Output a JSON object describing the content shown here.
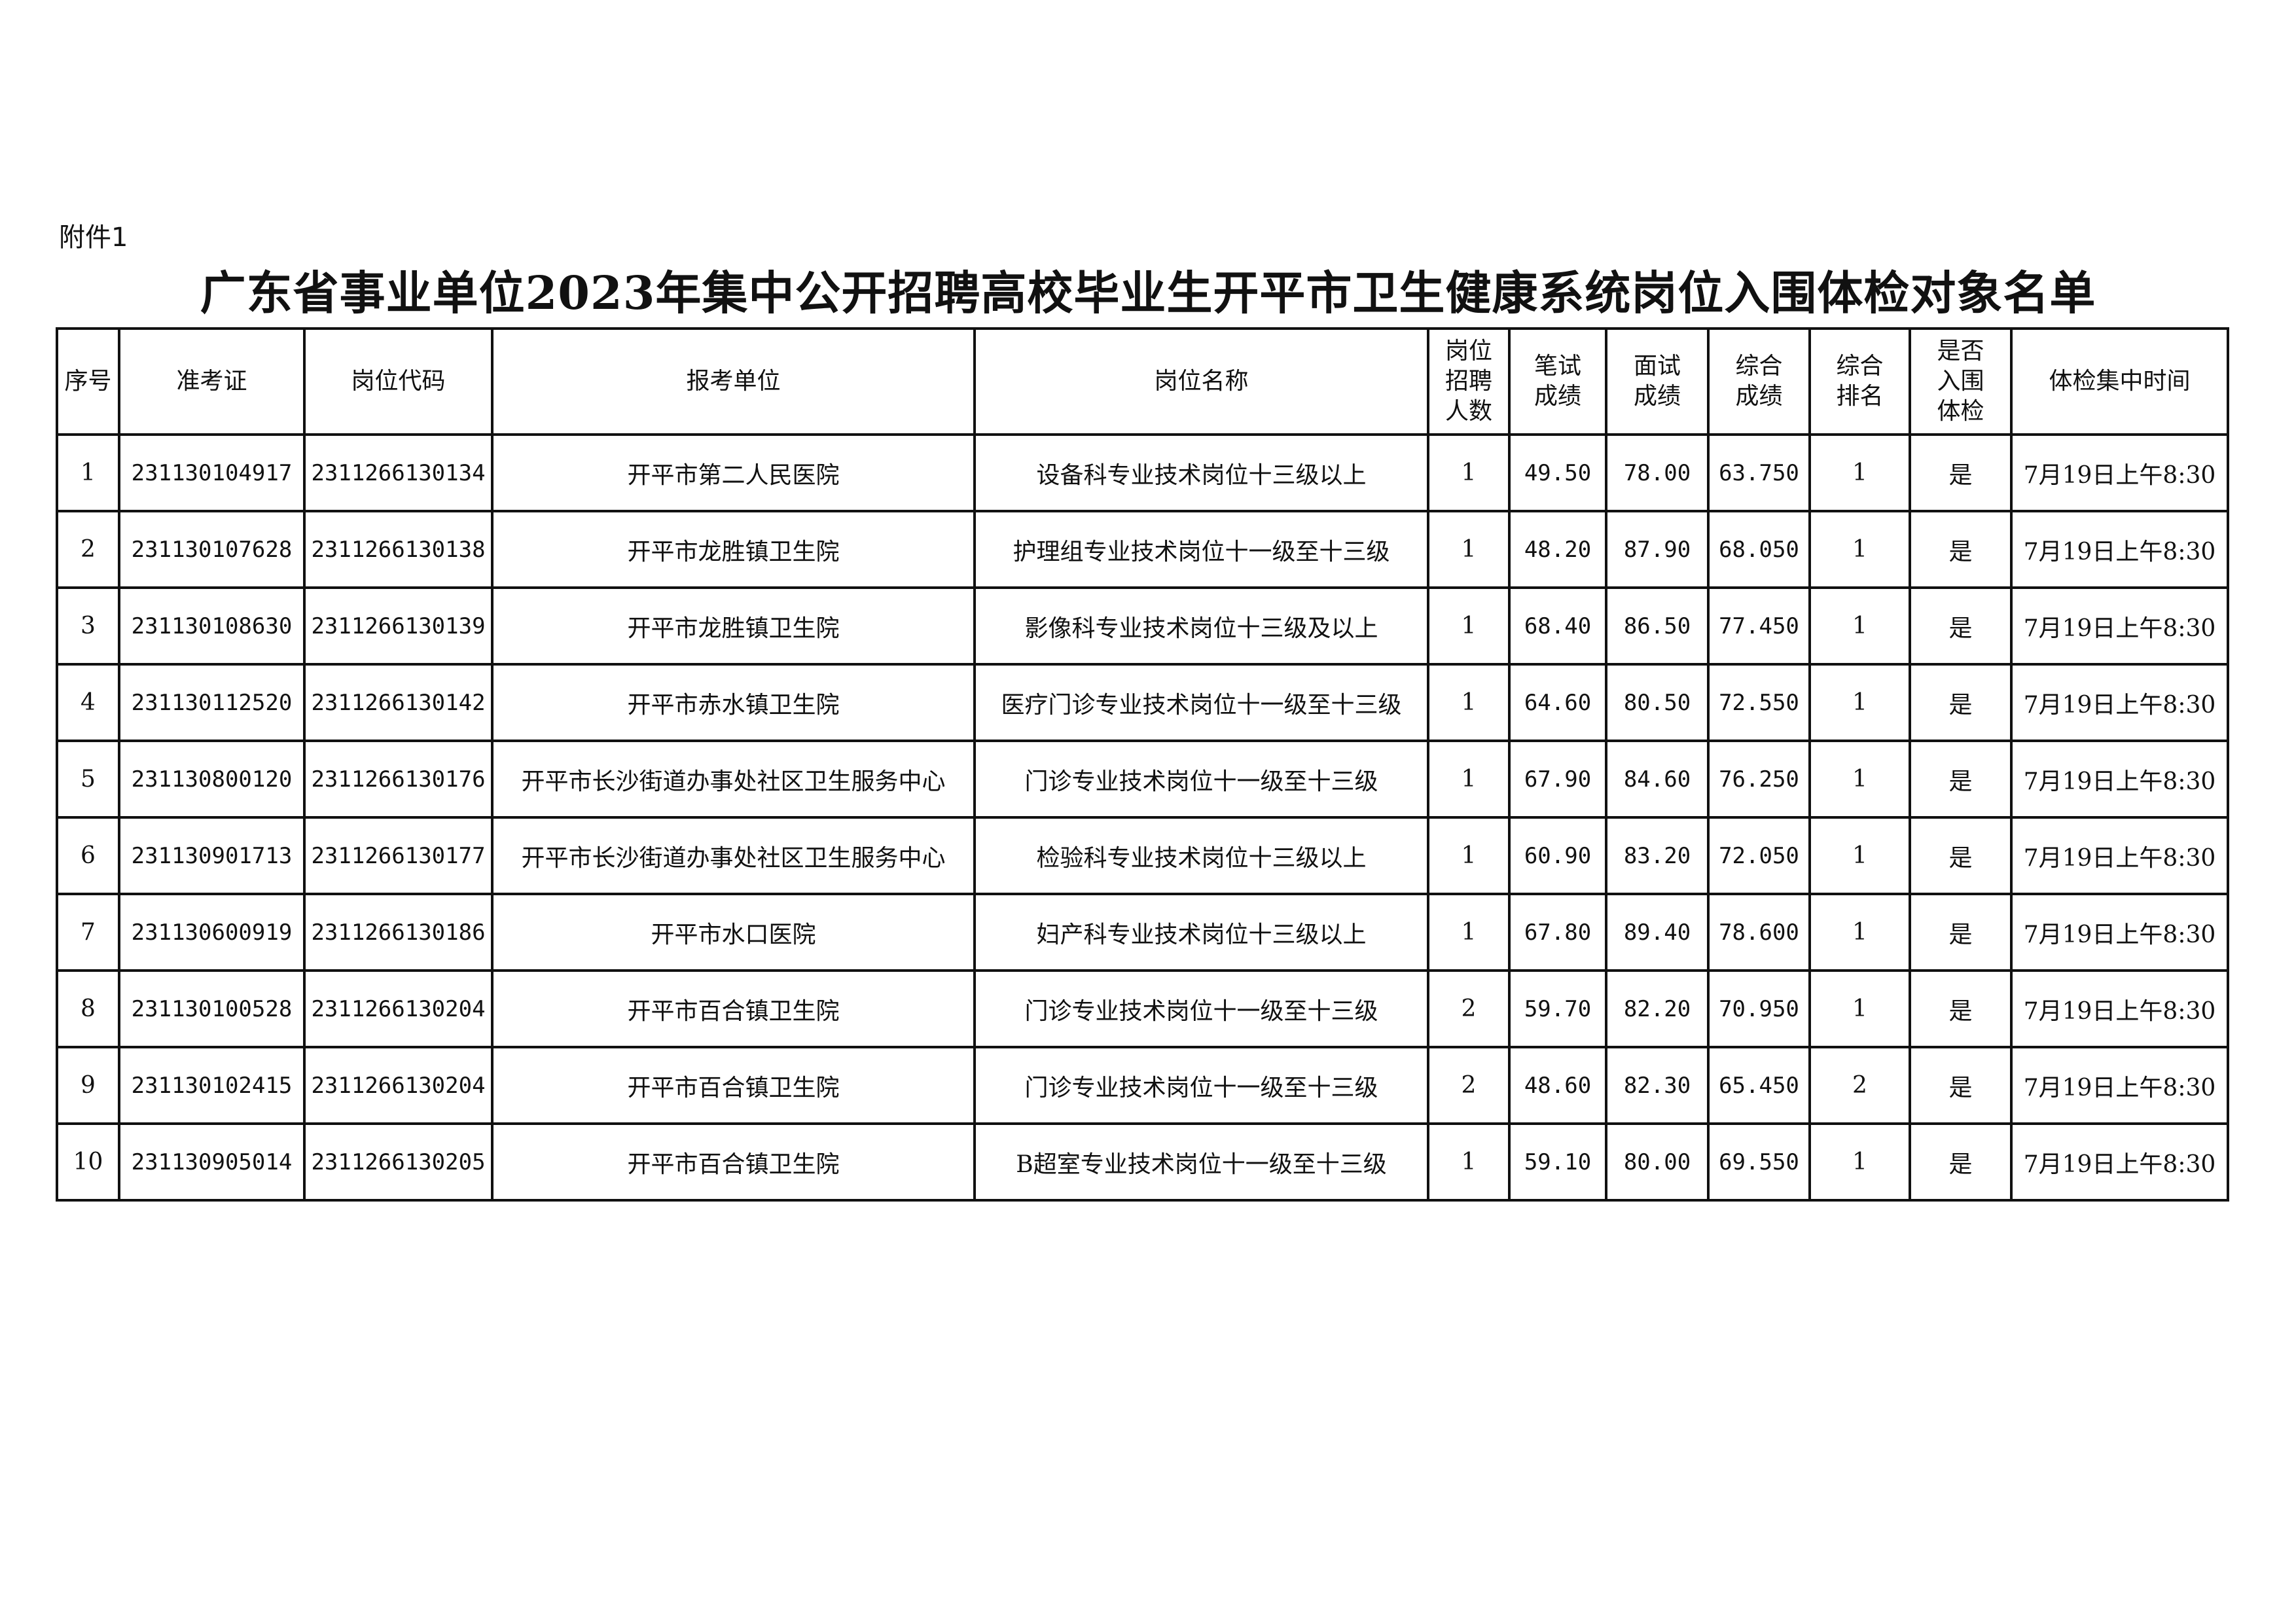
{
  "attachment_label": "附件1",
  "title": "广东省事业单位2023年集中公开招聘高校毕业生开平市卫生健康系统岗位入围体检对象名单",
  "columns": [
    "序号",
    "准考证",
    "岗位代码",
    "报考单位",
    "岗位名称",
    "岗位招聘人数",
    "笔试成绩",
    "面试成绩",
    "综合成绩",
    "综合排名",
    "是否入围体检",
    "体检集中时间"
  ],
  "rows": [
    {
      "no": "1",
      "ticket": "231130104917",
      "code": "2311266130134",
      "unit": "开平市第二人民医院",
      "post": "设备科专业技术岗位十三级以上",
      "quota": "1",
      "written": "49.50",
      "interview": "78.00",
      "total": "63.750",
      "rank": "1",
      "selected": "是",
      "time": "7月19日上午8:30"
    },
    {
      "no": "2",
      "ticket": "231130107628",
      "code": "2311266130138",
      "unit": "开平市龙胜镇卫生院",
      "post": "护理组专业技术岗位十一级至十三级",
      "quota": "1",
      "written": "48.20",
      "interview": "87.90",
      "total": "68.050",
      "rank": "1",
      "selected": "是",
      "time": "7月19日上午8:30"
    },
    {
      "no": "3",
      "ticket": "231130108630",
      "code": "2311266130139",
      "unit": "开平市龙胜镇卫生院",
      "post": "影像科专业技术岗位十三级及以上",
      "quota": "1",
      "written": "68.40",
      "interview": "86.50",
      "total": "77.450",
      "rank": "1",
      "selected": "是",
      "time": "7月19日上午8:30"
    },
    {
      "no": "4",
      "ticket": "231130112520",
      "code": "2311266130142",
      "unit": "开平市赤水镇卫生院",
      "post": "医疗门诊专业技术岗位十一级至十三级",
      "quota": "1",
      "written": "64.60",
      "interview": "80.50",
      "total": "72.550",
      "rank": "1",
      "selected": "是",
      "time": "7月19日上午8:30"
    },
    {
      "no": "5",
      "ticket": "231130800120",
      "code": "2311266130176",
      "unit": "开平市长沙街道办事处社区卫生服务中心",
      "post": "门诊专业技术岗位十一级至十三级",
      "quota": "1",
      "written": "67.90",
      "interview": "84.60",
      "total": "76.250",
      "rank": "1",
      "selected": "是",
      "time": "7月19日上午8:30"
    },
    {
      "no": "6",
      "ticket": "231130901713",
      "code": "2311266130177",
      "unit": "开平市长沙街道办事处社区卫生服务中心",
      "post": "检验科专业技术岗位十三级以上",
      "quota": "1",
      "written": "60.90",
      "interview": "83.20",
      "total": "72.050",
      "rank": "1",
      "selected": "是",
      "time": "7月19日上午8:30"
    },
    {
      "no": "7",
      "ticket": "231130600919",
      "code": "2311266130186",
      "unit": "开平市水口医院",
      "post": "妇产科专业技术岗位十三级以上",
      "quota": "1",
      "written": "67.80",
      "interview": "89.40",
      "total": "78.600",
      "rank": "1",
      "selected": "是",
      "time": "7月19日上午8:30"
    },
    {
      "no": "8",
      "ticket": "231130100528",
      "code": "2311266130204",
      "unit": "开平市百合镇卫生院",
      "post": "门诊专业技术岗位十一级至十三级",
      "quota": "2",
      "written": "59.70",
      "interview": "82.20",
      "total": "70.950",
      "rank": "1",
      "selected": "是",
      "time": "7月19日上午8:30"
    },
    {
      "no": "9",
      "ticket": "231130102415",
      "code": "2311266130204",
      "unit": "开平市百合镇卫生院",
      "post": "门诊专业技术岗位十一级至十三级",
      "quota": "2",
      "written": "48.60",
      "interview": "82.30",
      "total": "65.450",
      "rank": "2",
      "selected": "是",
      "time": "7月19日上午8:30"
    },
    {
      "no": "10",
      "ticket": "231130905014",
      "code": "2311266130205",
      "unit": "开平市百合镇卫生院",
      "post": "B超室专业技术岗位十一级至十三级",
      "quota": "1",
      "written": "59.10",
      "interview": "80.00",
      "total": "69.550",
      "rank": "1",
      "selected": "是",
      "time": "7月19日上午8:30"
    }
  ]
}
